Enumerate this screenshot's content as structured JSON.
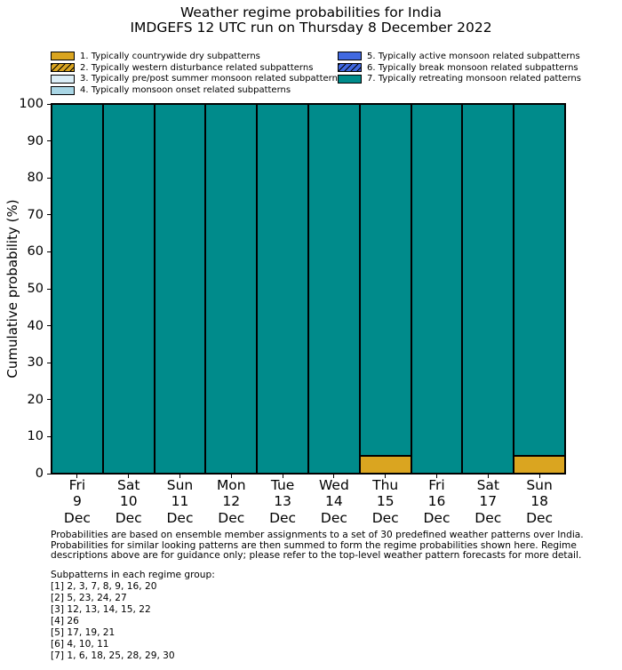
{
  "header": {
    "title": "Weather regime probabilities for India",
    "subtitle": "IMDGEFS 12 UTC run on Thursday 8 December 2022"
  },
  "legend": {
    "items": [
      {
        "label": "1. Typically countrywide dry subpatterns",
        "color": "#daa520",
        "hatch": false
      },
      {
        "label": "2. Typically western disturbance related subpatterns",
        "color": "#daa520",
        "hatch": true
      },
      {
        "label": "3. Typically pre/post summer monsoon related subpatterns",
        "color": "#dbeef7",
        "hatch": false
      },
      {
        "label": "4. Typically monsoon onset related subpatterns",
        "color": "#a9d6e5",
        "hatch": false
      },
      {
        "label": "5. Typically active monsoon related subpatterns",
        "color": "#4169e1",
        "hatch": false
      },
      {
        "label": "6. Typically break monsoon related subpatterns",
        "color": "#4169e1",
        "hatch": true
      },
      {
        "label": "7. Typically retreating monsoon related patterns",
        "color": "#008b8b",
        "hatch": false
      }
    ]
  },
  "chart_data": {
    "type": "bar",
    "stacked": true,
    "title": "Weather regime probabilities for India",
    "subtitle": "IMDGEFS 12 UTC run on Thursday 8 December 2022",
    "ylabel": "Cumulative probability (%)",
    "xlabel": "",
    "ylim": [
      0,
      100
    ],
    "yticks": [
      0,
      10,
      20,
      30,
      40,
      50,
      60,
      70,
      80,
      90,
      100
    ],
    "grid": false,
    "legend_position": "top",
    "bar_edge_color": "#000000",
    "categories": [
      [
        "Fri",
        "9",
        "Dec"
      ],
      [
        "Sat",
        "10",
        "Dec"
      ],
      [
        "Sun",
        "11",
        "Dec"
      ],
      [
        "Mon",
        "12",
        "Dec"
      ],
      [
        "Tue",
        "13",
        "Dec"
      ],
      [
        "Wed",
        "14",
        "Dec"
      ],
      [
        "Thu",
        "15",
        "Dec"
      ],
      [
        "Fri",
        "16",
        "Dec"
      ],
      [
        "Sat",
        "17",
        "Dec"
      ],
      [
        "Sun",
        "18",
        "Dec"
      ]
    ],
    "series": [
      {
        "name": "1. Typically countrywide dry subpatterns",
        "color": "#daa520",
        "values": [
          0,
          0,
          0,
          0,
          0,
          0,
          4.8,
          0,
          0,
          4.8
        ]
      },
      {
        "name": "7. Typically retreating monsoon related patterns",
        "color": "#008b8b",
        "values": [
          100,
          100,
          100,
          100,
          100,
          100,
          95.2,
          100,
          100,
          95.2
        ]
      }
    ]
  },
  "footnote": {
    "lines": [
      "Probabilities are based on ensemble member assignments to a set of 30 predefined weather patterns over India.",
      "Probabilities for similar looking patterns are then summed to form the regime probabilities shown here. Regime",
      "descriptions above are for guidance only; please refer to the top-level weather pattern forecasts for more detail."
    ]
  },
  "subpatterns": {
    "title": "Subpatterns in each regime group:",
    "groups": [
      "[1] 2, 3, 7, 8, 9, 16, 20",
      "[2] 5, 23, 24, 27",
      "[3] 12, 13, 14, 15, 22",
      "[4] 26",
      "[5] 17, 19, 21",
      "[6] 4, 10, 11",
      "[7] 1, 6, 18, 25, 28, 29, 30"
    ]
  }
}
